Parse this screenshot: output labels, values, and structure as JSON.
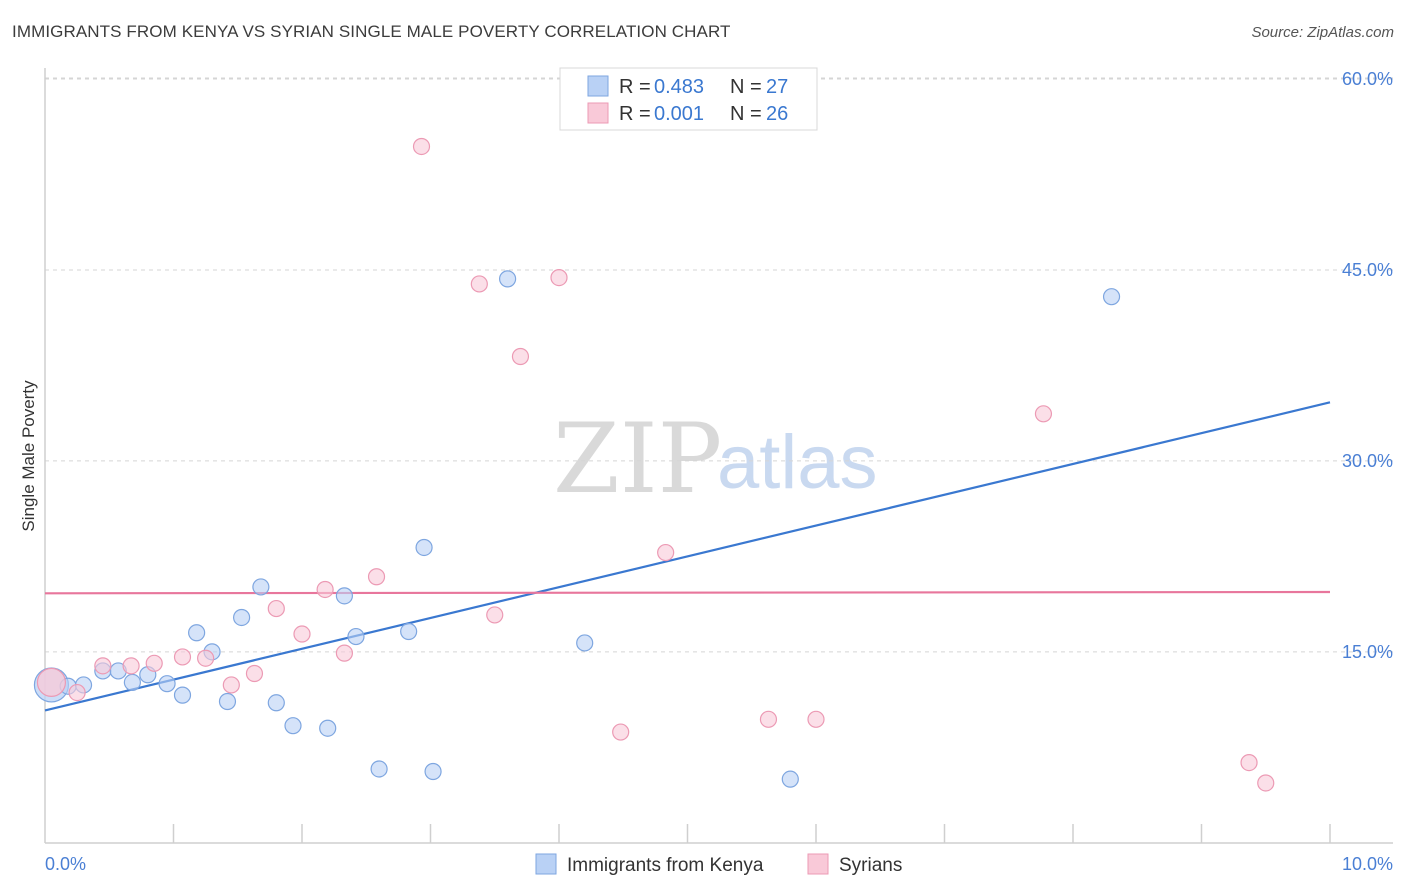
{
  "title": "IMMIGRANTS FROM KENYA VS SYRIAN SINGLE MALE POVERTY CORRELATION CHART",
  "source": "Source: ZipAtlas.com",
  "watermark": {
    "zip": "ZIP",
    "atlas": "atlas"
  },
  "colors": {
    "kenya_fill": "#b9d1f5",
    "kenya_stroke": "#7ea6e0",
    "kenya_line": "#3a78d0",
    "syria_fill": "#f9c9d8",
    "syria_stroke": "#ec9ab4",
    "syria_line": "#e8769c",
    "tick_text": "#4a7fd4",
    "grid": "#d5d5d5"
  },
  "legend": {
    "rows": [
      {
        "r_label": "R = ",
        "r_value": "0.483",
        "n_label": "N = ",
        "n_value": "27"
      },
      {
        "r_label": "R = ",
        "r_value": "0.001",
        "n_label": "N = ",
        "n_value": "26"
      }
    ]
  },
  "chart_data": {
    "type": "scatter",
    "title": "IMMIGRANTS FROM KENYA VS SYRIAN SINGLE MALE POVERTY CORRELATION CHART",
    "xlabel": "",
    "ylabel": "Single Male Poverty",
    "xlim": [
      0,
      10
    ],
    "ylim": [
      0,
      60
    ],
    "x_tick_labels": [
      "0.0%",
      "10.0%"
    ],
    "y_ticks": [
      15,
      30,
      45,
      60
    ],
    "y_tick_labels": [
      "15.0%",
      "30.0%",
      "45.0%",
      "60.0%"
    ],
    "grid": "horizontal dashed",
    "legend_position": "top-center",
    "series": [
      {
        "name": "Immigrants from Kenya",
        "points": [
          [
            0.05,
            12.4
          ],
          [
            0.18,
            12.3
          ],
          [
            0.3,
            12.4
          ],
          [
            0.45,
            13.5
          ],
          [
            0.57,
            13.5
          ],
          [
            0.68,
            12.6
          ],
          [
            0.8,
            13.2
          ],
          [
            0.95,
            12.5
          ],
          [
            1.07,
            11.6
          ],
          [
            1.18,
            16.5
          ],
          [
            1.3,
            15.0
          ],
          [
            1.42,
            11.1
          ],
          [
            1.53,
            17.7
          ],
          [
            1.68,
            20.1
          ],
          [
            1.8,
            11.0
          ],
          [
            1.93,
            9.2
          ],
          [
            2.2,
            9.0
          ],
          [
            2.33,
            19.4
          ],
          [
            2.42,
            16.2
          ],
          [
            2.6,
            5.8
          ],
          [
            2.83,
            16.6
          ],
          [
            2.95,
            23.2
          ],
          [
            3.02,
            5.6
          ],
          [
            3.6,
            44.3
          ],
          [
            4.2,
            15.7
          ],
          [
            5.8,
            5.0
          ],
          [
            8.3,
            42.9
          ]
        ],
        "trend": {
          "x": [
            0,
            10
          ],
          "y": [
            10.4,
            34.6
          ]
        }
      },
      {
        "name": "Syrians",
        "points": [
          [
            0.05,
            12.6
          ],
          [
            0.25,
            11.8
          ],
          [
            0.45,
            13.9
          ],
          [
            0.67,
            13.9
          ],
          [
            0.85,
            14.1
          ],
          [
            1.07,
            14.6
          ],
          [
            1.25,
            14.5
          ],
          [
            1.45,
            12.4
          ],
          [
            1.63,
            13.3
          ],
          [
            1.8,
            18.4
          ],
          [
            2.0,
            16.4
          ],
          [
            2.18,
            19.9
          ],
          [
            2.33,
            14.9
          ],
          [
            2.58,
            20.9
          ],
          [
            2.93,
            54.7
          ],
          [
            3.38,
            43.9
          ],
          [
            3.5,
            17.9
          ],
          [
            3.7,
            38.2
          ],
          [
            4.0,
            44.4
          ],
          [
            4.48,
            8.7
          ],
          [
            4.83,
            22.8
          ],
          [
            5.63,
            9.7
          ],
          [
            6.0,
            9.7
          ],
          [
            7.77,
            33.7
          ],
          [
            9.37,
            6.3
          ],
          [
            9.5,
            4.7
          ]
        ],
        "trend": {
          "x": [
            0,
            10
          ],
          "y": [
            19.6,
            19.7
          ]
        }
      }
    ]
  }
}
